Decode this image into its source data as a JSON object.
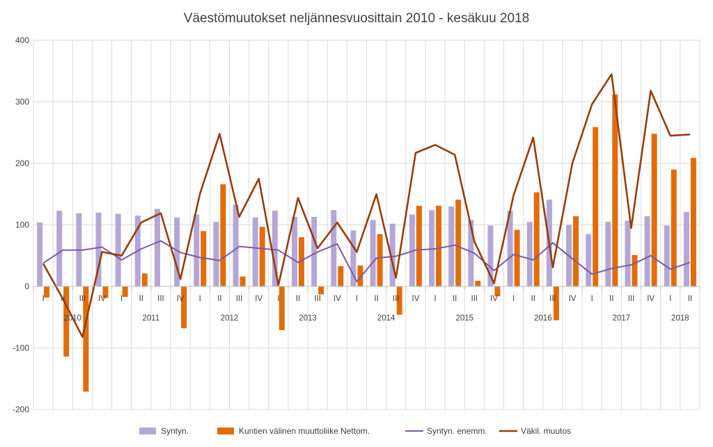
{
  "chart_data": {
    "type": "bar",
    "title": "Väestömuutokset neljännesvuosittain 2010 - kesäkuu 2018",
    "ylim": [
      -200,
      400
    ],
    "yticks": [
      -200,
      -100,
      0,
      100,
      200,
      300,
      400
    ],
    "grid": "vertical category separators",
    "legend_position": "bottom",
    "categories": [
      "I",
      "II",
      "III",
      "IV",
      "I",
      "II",
      "III",
      "IV",
      "I",
      "II",
      "III",
      "IV",
      "I",
      "II",
      "III",
      "IV",
      "I",
      "II",
      "III",
      "IV",
      "I",
      "II",
      "III",
      "IV",
      "I",
      "II",
      "III",
      "IV",
      "I",
      "II",
      "III",
      "IV",
      "I",
      "II"
    ],
    "years": [
      {
        "label": "2010",
        "start": 0,
        "end": 3
      },
      {
        "label": "2011",
        "start": 4,
        "end": 7
      },
      {
        "label": "2012",
        "start": 8,
        "end": 11
      },
      {
        "label": "2013",
        "start": 12,
        "end": 15
      },
      {
        "label": "2014",
        "start": 16,
        "end": 19
      },
      {
        "label": "2015",
        "start": 20,
        "end": 23
      },
      {
        "label": "2016",
        "start": 24,
        "end": 27
      },
      {
        "label": "2017",
        "start": 28,
        "end": 31
      },
      {
        "label": "2018",
        "start": 32,
        "end": 33
      }
    ],
    "series": [
      {
        "name": "Syntyn.",
        "kind": "bar",
        "color": "#b4a7d6",
        "values": [
          104,
          123,
          119,
          120,
          118,
          115,
          126,
          112,
          117,
          105,
          133,
          112,
          123,
          113,
          113,
          124,
          91,
          108,
          102,
          117,
          124,
          130,
          108,
          99,
          123,
          105,
          141,
          100,
          85,
          105,
          107,
          114,
          99,
          121
        ]
      },
      {
        "name": "Kuntien välinen muuttoliike Nettom.",
        "kind": "bar",
        "color": "#e36c0a",
        "values": [
          -18,
          -114,
          -171,
          -19,
          -17,
          21,
          0,
          -68,
          90,
          166,
          16,
          97,
          -71,
          80,
          -13,
          33,
          34,
          85,
          -46,
          131,
          131,
          141,
          9,
          -16,
          92,
          153,
          -55,
          114,
          259,
          312,
          51,
          248,
          190,
          209
        ]
      },
      {
        "name": "Syntyn. enemm.",
        "kind": "line",
        "color": "#7e57a8",
        "values": [
          38,
          59,
          59,
          64,
          43,
          61,
          74,
          55,
          47,
          42,
          65,
          62,
          59,
          39,
          56,
          69,
          8,
          46,
          49,
          59,
          61,
          67,
          54,
          26,
          52,
          43,
          71,
          45,
          20,
          29,
          35,
          50,
          28,
          39
        ]
      },
      {
        "name": "Väkil. muutos",
        "kind": "line",
        "color": "#943d0c",
        "values": [
          37,
          -20,
          -82,
          56,
          50,
          104,
          119,
          12,
          151,
          248,
          113,
          175,
          2,
          144,
          62,
          104,
          56,
          150,
          14,
          217,
          230,
          214,
          73,
          5,
          148,
          242,
          31,
          200,
          296,
          345,
          95,
          318,
          245,
          247
        ]
      }
    ]
  }
}
